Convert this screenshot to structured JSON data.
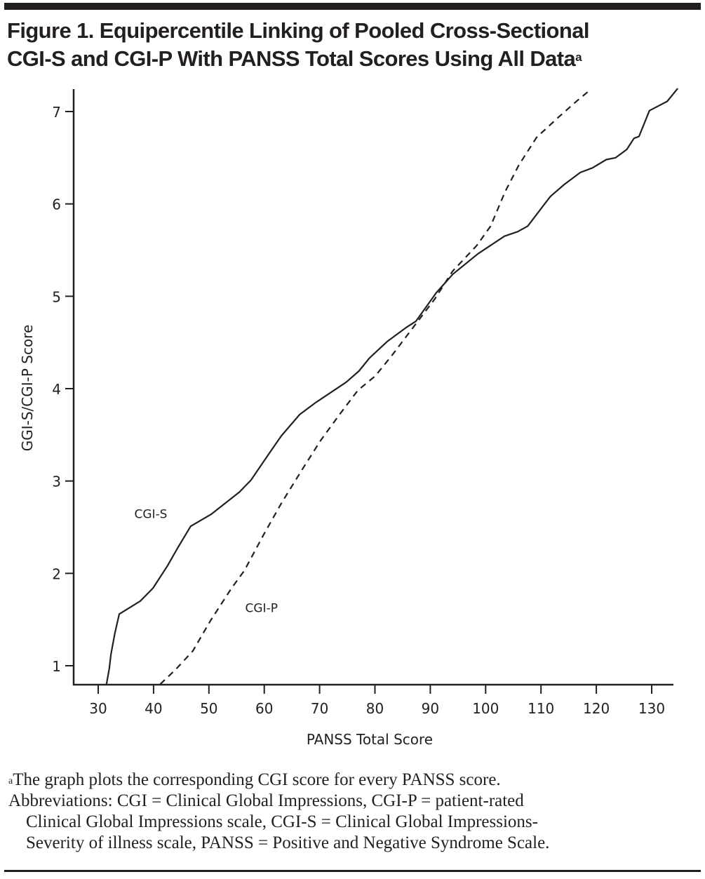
{
  "figure": {
    "title_line1": "Figure 1. Equipercentile Linking of Pooled Cross-Sectional",
    "title_line2": "CGI-S and CGI-P With PANSS Total Scores Using All Data",
    "title_superscript": "a"
  },
  "footnote": {
    "marker": "a",
    "line1": "The graph plots the corresponding CGI score for every PANSS score.",
    "line2": "Abbreviations: CGI = Clinical Global Impressions, CGI-P = patient-rated",
    "line3": "Clinical Global Impressions scale, CGI-S = Clinical Global Impressions-",
    "line4": "Severity of illness scale, PANSS = Positive and Negative Syndrome Scale."
  },
  "chart_data": {
    "type": "line",
    "title": "Equipercentile Linking of Pooled Cross-Sectional CGI-S and CGI-P With PANSS Total Scores Using All Data",
    "xlabel": "PANSS Total Score",
    "ylabel": "GGI-S/CGI-P Score",
    "xlim": [
      25.5,
      135.5
    ],
    "ylim": [
      0.8,
      7.25
    ],
    "xticks": [
      30,
      40,
      50,
      60,
      70,
      80,
      90,
      100,
      110,
      120,
      130
    ],
    "yticks": [
      1,
      2,
      3,
      4,
      5,
      6,
      7
    ],
    "xtick_labels": [
      "30",
      "40",
      "50",
      "60",
      "70",
      "80",
      "90",
      "100",
      "110",
      "120",
      "130"
    ],
    "ytick_labels": [
      "1",
      "2",
      "3",
      "4",
      "5",
      "6",
      "7"
    ],
    "grid": false,
    "legend": "inline labels",
    "series": [
      {
        "name": "CGI-S",
        "style": "solid",
        "label": "CGI-S",
        "label_at": [
          39.5,
          2.6
        ],
        "points": [
          [
            31.5,
            0.8
          ],
          [
            32.0,
            0.97
          ],
          [
            32.3,
            1.12
          ],
          [
            33.0,
            1.35
          ],
          [
            33.8,
            1.56
          ],
          [
            37.6,
            1.7
          ],
          [
            39.9,
            1.84
          ],
          [
            42.5,
            2.08
          ],
          [
            44.4,
            2.28
          ],
          [
            46.7,
            2.51
          ],
          [
            50.4,
            2.64
          ],
          [
            55.5,
            2.88
          ],
          [
            57.6,
            3.01
          ],
          [
            60.9,
            3.3
          ],
          [
            63.1,
            3.49
          ],
          [
            66.4,
            3.72
          ],
          [
            69.3,
            3.85
          ],
          [
            74.8,
            4.07
          ],
          [
            77.1,
            4.19
          ],
          [
            79.0,
            4.33
          ],
          [
            80.6,
            4.42
          ],
          [
            82.2,
            4.51
          ],
          [
            85.6,
            4.66
          ],
          [
            87.4,
            4.73
          ],
          [
            91.1,
            5.04
          ],
          [
            94.1,
            5.24
          ],
          [
            98.6,
            5.46
          ],
          [
            103.4,
            5.65
          ],
          [
            105.8,
            5.7
          ],
          [
            107.6,
            5.76
          ],
          [
            110.4,
            5.98
          ],
          [
            111.7,
            6.08
          ],
          [
            114.2,
            6.21
          ],
          [
            117.1,
            6.34
          ],
          [
            119.3,
            6.39
          ],
          [
            121.8,
            6.48
          ],
          [
            123.5,
            6.5
          ],
          [
            125.5,
            6.59
          ],
          [
            126.8,
            6.71
          ],
          [
            127.7,
            6.73
          ],
          [
            129.6,
            7.01
          ],
          [
            132.8,
            7.11
          ],
          [
            134.7,
            7.25
          ]
        ]
      },
      {
        "name": "CGI-P",
        "style": "dashed",
        "label": "CGI-P",
        "label_at": [
          59.5,
          1.58
        ],
        "points": [
          [
            41.2,
            0.8
          ],
          [
            44.0,
            0.96
          ],
          [
            47.1,
            1.16
          ],
          [
            50.3,
            1.49
          ],
          [
            54.1,
            1.84
          ],
          [
            56.4,
            2.03
          ],
          [
            59.9,
            2.42
          ],
          [
            63.2,
            2.77
          ],
          [
            66.8,
            3.12
          ],
          [
            70.2,
            3.44
          ],
          [
            73.6,
            3.72
          ],
          [
            76.9,
            3.98
          ],
          [
            80.1,
            4.14
          ],
          [
            83.2,
            4.37
          ],
          [
            87.0,
            4.67
          ],
          [
            90.8,
            4.97
          ],
          [
            94.0,
            5.27
          ],
          [
            98.4,
            5.55
          ],
          [
            100.9,
            5.76
          ],
          [
            103.5,
            6.13
          ],
          [
            106.0,
            6.42
          ],
          [
            109.2,
            6.72
          ],
          [
            113.0,
            6.93
          ],
          [
            116.2,
            7.1
          ],
          [
            119.0,
            7.24
          ]
        ]
      }
    ]
  },
  "colors": {
    "ink": "#231f20",
    "background": "#ffffff"
  }
}
